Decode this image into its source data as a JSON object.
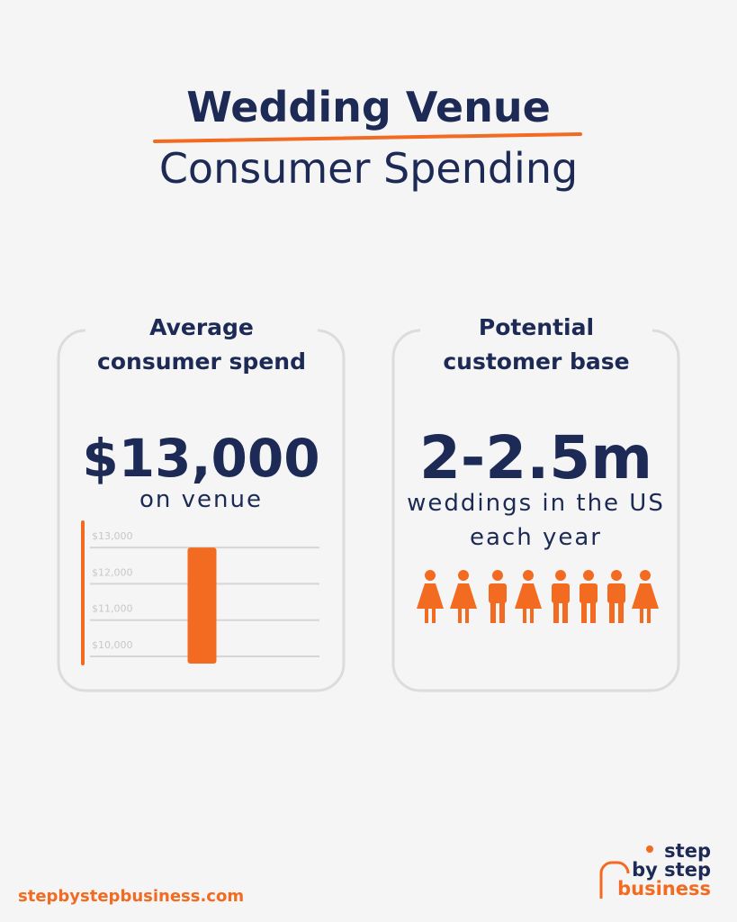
{
  "title": {
    "line1": "Wedding Venue",
    "line2": "Consumer Spending"
  },
  "cards": [
    {
      "heading": "Average consumer spend",
      "value": "$13,000",
      "caption": "on venue"
    },
    {
      "heading": "Potential customer base",
      "value": "2-2.5m",
      "caption": "weddings in the US each year"
    }
  ],
  "chart_data": {
    "type": "bar",
    "categories": [
      null
    ],
    "values": [
      13000
    ],
    "color": "#f26b21",
    "ylim": [
      9800,
      13700
    ],
    "yticks": [
      {
        "value": 10000,
        "label": "$10,000"
      },
      {
        "value": 11000,
        "label": "$11,000"
      },
      {
        "value": 12000,
        "label": "$12,000"
      },
      {
        "value": 13000,
        "label": "$13,000"
      }
    ],
    "grid": true
  },
  "footer": {
    "url": "stepbystepbusiness.com",
    "logo": [
      "step",
      "by step",
      "business"
    ]
  }
}
